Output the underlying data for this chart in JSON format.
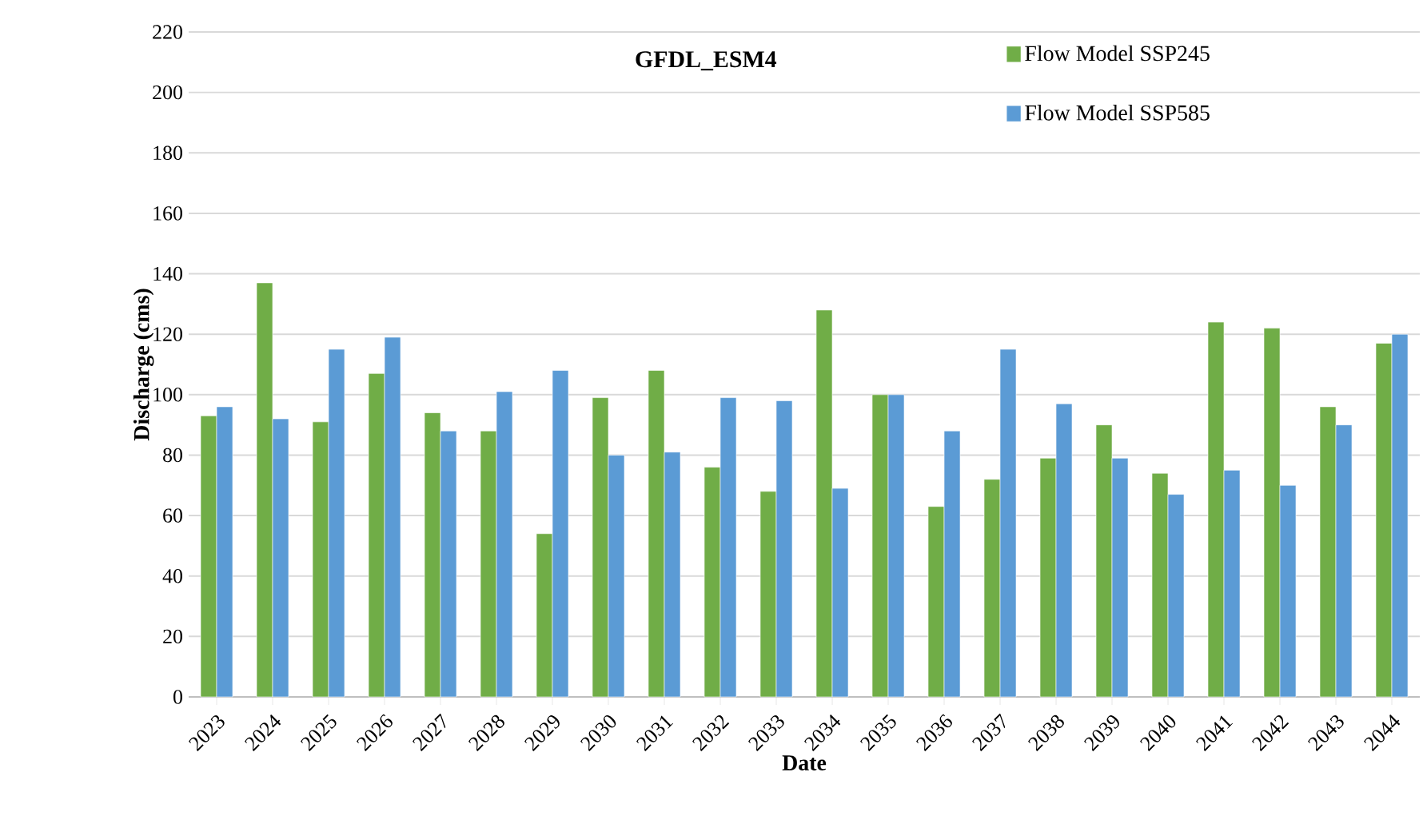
{
  "chart_data": {
    "type": "bar",
    "title": "GFDL_ESM4",
    "xlabel": "Date",
    "ylabel": "Discharge (cms)",
    "categories": [
      "2023",
      "2024",
      "2025",
      "2026",
      "2027",
      "2028",
      "2029",
      "2030",
      "2031",
      "2032",
      "2033",
      "2034",
      "2035",
      "2036",
      "2037",
      "2038",
      "2039",
      "2040",
      "2041",
      "2042",
      "2043",
      "2044"
    ],
    "series": [
      {
        "name": "Flow Model SSP245",
        "color": "#70ad47",
        "values": [
          93,
          137,
          91,
          107,
          94,
          88,
          54,
          99,
          108,
          76,
          68,
          128,
          100,
          63,
          72,
          79,
          90,
          74,
          124,
          122,
          96,
          117
        ]
      },
      {
        "name": "Flow Model SSP585",
        "color": "#5b9bd5",
        "values": [
          96,
          92,
          115,
          119,
          88,
          101,
          108,
          80,
          81,
          99,
          98,
          69,
          100,
          88,
          115,
          97,
          79,
          67,
          75,
          70,
          90,
          120
        ]
      }
    ],
    "ylim": [
      0,
      220
    ],
    "yticks": [
      0,
      20,
      40,
      60,
      80,
      100,
      120,
      140,
      160,
      180,
      200,
      220
    ],
    "grid": "y",
    "legend": "top right"
  }
}
